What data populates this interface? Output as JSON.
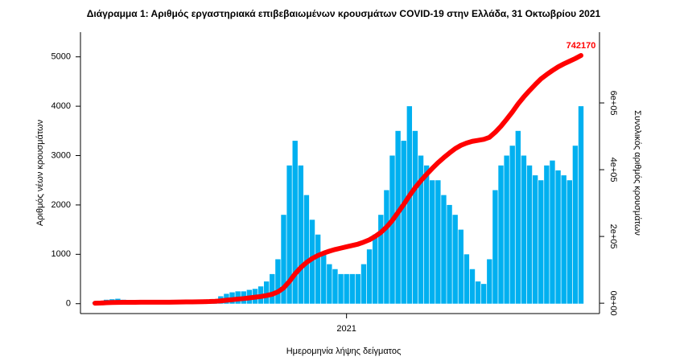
{
  "chart_data": {
    "type": "bar",
    "title": "Διάγραμμα 1: Αριθμός εργαστηριακά επιβεβαιωμένων κρουσμάτων COVID-19 στην Ελλάδα, 31 Οκτωβρίου 2021",
    "xlabel": "Ημερομηνία λήψης δείγματος",
    "ylabel": "Αριθμός νέων κρουσμάτων",
    "y2label": "Συνολικός αριθμός κρουσμάτων",
    "categories": [
      null,
      null,
      null,
      null,
      null,
      null,
      null,
      null,
      null,
      null,
      null,
      null,
      null,
      null,
      null,
      null,
      null,
      null,
      null,
      null,
      null,
      null,
      null,
      null,
      null,
      null,
      null,
      null,
      null,
      null,
      null,
      null,
      null,
      null,
      null,
      null,
      null,
      null,
      null,
      null,
      null,
      null,
      null,
      null,
      "2021",
      null,
      null,
      null,
      null,
      null,
      null,
      null,
      null,
      null,
      null,
      null,
      null,
      null,
      null,
      null,
      null,
      null,
      null,
      null,
      null,
      null,
      null,
      null,
      null,
      null,
      null,
      null,
      null,
      null,
      null,
      null,
      null,
      null,
      null,
      null,
      null,
      null,
      null,
      null,
      null,
      null
    ],
    "ylim": [
      -200,
      5500
    ],
    "yticks": [
      0,
      1000,
      2000,
      3000,
      4000,
      5000
    ],
    "y2lim": [
      -31000,
      812000
    ],
    "y2ticks": [
      {
        "value": 0,
        "label": "0e+00"
      },
      {
        "value": 200000,
        "label": "2e+05"
      },
      {
        "value": 400000,
        "label": "4e+05"
      },
      {
        "value": 600000,
        "label": "6e+05"
      }
    ],
    "series": [
      {
        "color": "#00b0f0",
        "values": [
          30,
          60,
          80,
          90,
          100,
          80,
          60,
          40,
          30,
          20,
          15,
          10,
          10,
          10,
          10,
          15,
          20,
          30,
          30,
          40,
          40,
          80,
          150,
          200,
          230,
          250,
          250,
          280,
          300,
          350,
          450,
          600,
          900,
          1800,
          2800,
          3300,
          2800,
          2200,
          1700,
          1400,
          1000,
          800,
          700,
          600,
          600,
          600,
          600,
          800,
          1100,
          1400,
          1800,
          2300,
          3000,
          3500,
          3300,
          4000,
          3500,
          3000,
          2800,
          2500,
          2500,
          2200,
          2000,
          1800,
          1500,
          1000,
          700,
          450,
          400,
          900,
          2300,
          2800,
          3000,
          3200,
          3500,
          3000,
          2800,
          2600,
          2500,
          2800,
          2900,
          2700,
          2600,
          2500,
          3200,
          4000
        ]
      },
      {
        "type": "line",
        "axis": "y2",
        "color": "#ff0000",
        "values": [
          100,
          500,
          1500,
          2000,
          2500,
          2600,
          2700,
          2800,
          2900,
          2950,
          3000,
          3050,
          3100,
          3150,
          3300,
          3500,
          3800,
          4000,
          4300,
          4600,
          5000,
          5800,
          7000,
          9000,
          10500,
          12500,
          14000,
          16000,
          18000,
          20000,
          23000,
          27000,
          34000,
          46000,
          65000,
          88000,
          107000,
          122000,
          134000,
          143000,
          150000,
          156000,
          161000,
          165000,
          169000,
          173000,
          177000,
          183000,
          190000,
          200000,
          212000,
          228000,
          248000,
          272000,
          296000,
          322000,
          346000,
          367000,
          386000,
          404000,
          421000,
          436000,
          450000,
          463000,
          473000,
          480000,
          485000,
          488000,
          491000,
          497000,
          512000,
          530000,
          551000,
          573000,
          597000,
          618000,
          637000,
          655000,
          672000,
          685000,
          697000,
          708000,
          717000,
          725000,
          733000,
          742170
        ]
      }
    ]
  }
}
